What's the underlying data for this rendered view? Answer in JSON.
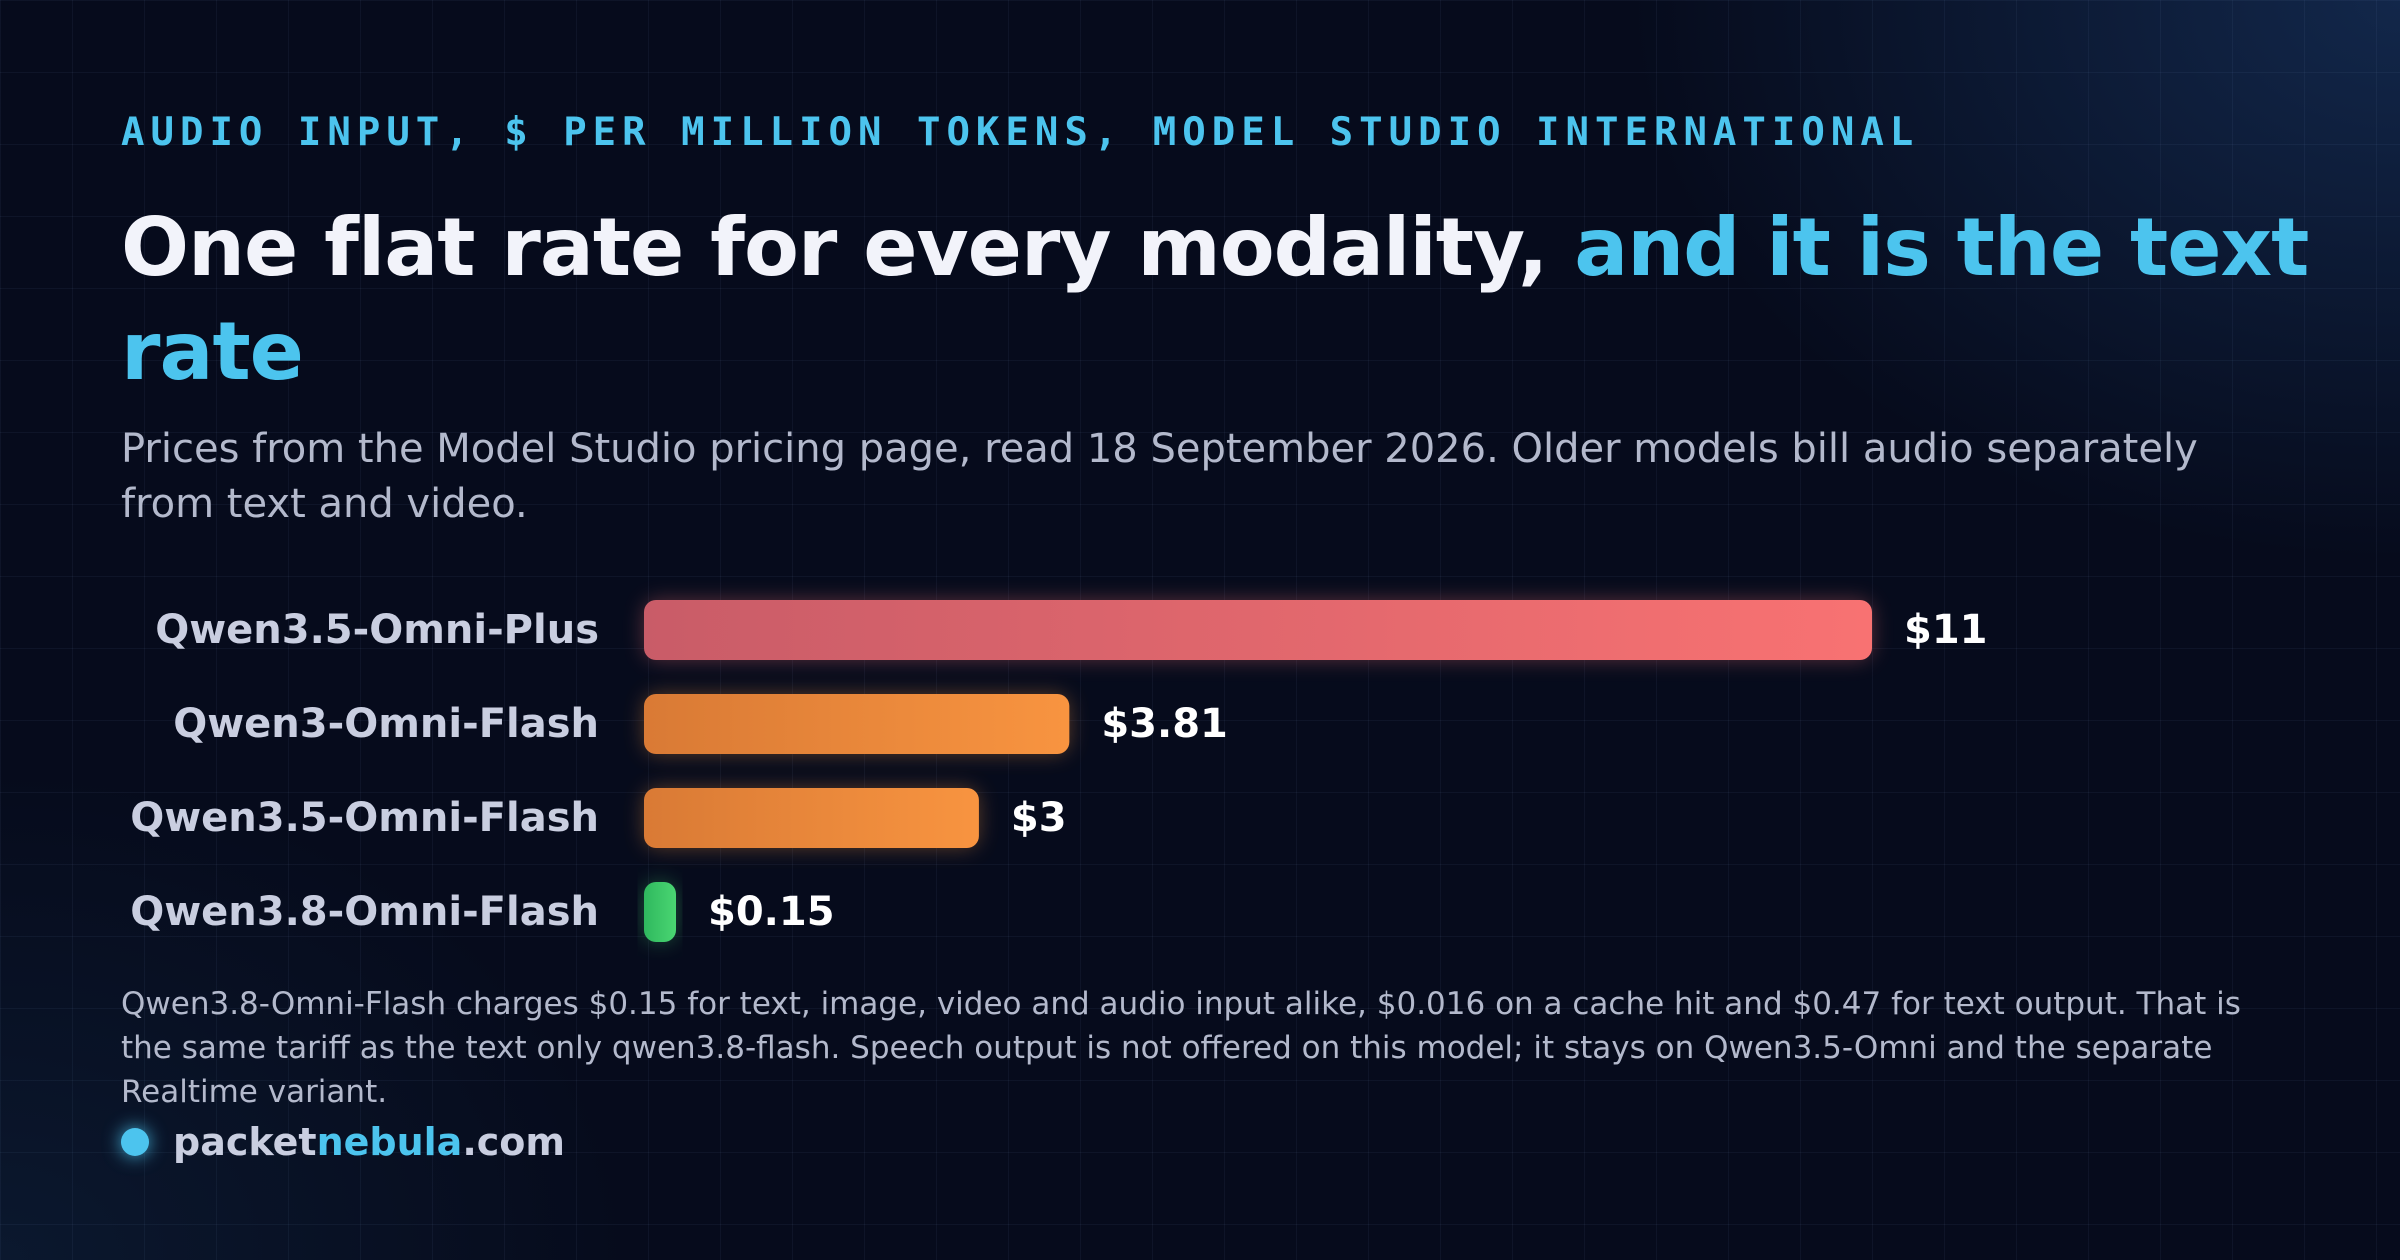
{
  "header": {
    "eyebrow": "AUDIO INPUT, $ PER MILLION TOKENS, MODEL STUDIO INTERNATIONAL",
    "title_main": "One flat rate for every modality,",
    "title_accent": "and it is the text rate",
    "subtitle": "Prices from the Model Studio pricing page, read 18 September 2026. Older models bill audio separately from text and video."
  },
  "chart_data": {
    "type": "bar",
    "orientation": "horizontal",
    "title": "One flat rate for every modality, and it is the text rate",
    "subtitle": "Prices from the Model Studio pricing page, read 18 September 2026. Older models bill audio separately from text and video.",
    "xlabel": "",
    "ylabel": "",
    "unit": "$ per million tokens",
    "categories": [
      "Qwen3.5-Omni-Plus",
      "Qwen3-Omni-Flash",
      "Qwen3.5-Omni-Flash",
      "Qwen3.8-Omni-Flash"
    ],
    "values": [
      11,
      3.81,
      3,
      0.15
    ],
    "value_labels": [
      "$11",
      "$3.81",
      "$3",
      "$0.15"
    ],
    "xlim": [
      0,
      11
    ],
    "grid": false,
    "legend": "none",
    "bar_colors": [
      [
        "#c95c68",
        "#f87272"
      ],
      [
        "#d97a35",
        "#f89440"
      ],
      [
        "#d97a35",
        "#f89440"
      ],
      [
        "#2fb85e",
        "#4ad672"
      ]
    ]
  },
  "footer": {
    "note": "Qwen3.8-Omni-Flash charges $0.15 for text, image, video and audio input alike, $0.016 on a cache hit and $0.47 for text output. That is the same tariff as the text only qwen3.8-flash. Speech output is not offered on this model; it stays on Qwen3.5-Omni and the separate Realtime variant.",
    "brand_prefix": "packet",
    "brand_accent": "nebula",
    "brand_suffix": ".com"
  },
  "colors": {
    "background": "#060b1c",
    "accent": "#4cc4ee",
    "text": "#f2f3fa",
    "muted": "#b3b9cc"
  }
}
